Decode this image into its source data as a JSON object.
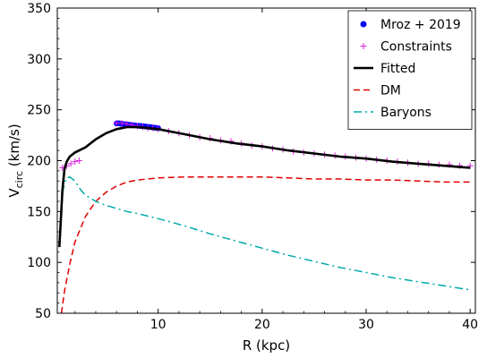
{
  "chart_data": {
    "type": "line",
    "xlabel": "R (kpc)",
    "ylabel": "V",
    "ylabel_sub": "circ",
    "ylabel_unit": " (km/s)",
    "xlim": [
      0.3,
      40.5
    ],
    "ylim": [
      50,
      350
    ],
    "xticks": [
      10,
      20,
      30,
      40
    ],
    "yticks": [
      50,
      100,
      150,
      200,
      250,
      300,
      350
    ],
    "grid": false,
    "legend_position": "top-right",
    "series": [
      {
        "name": "Mroz + 2019",
        "kind": "points",
        "color": "#0000ff",
        "x": [
          6.0,
          6.2,
          6.4,
          6.6,
          6.8,
          7.0,
          7.2,
          7.4,
          7.6,
          7.8,
          8.0,
          8.2,
          8.4,
          8.6,
          8.8,
          9.0,
          9.2,
          9.4,
          9.6,
          9.8,
          10.0
        ],
        "y": [
          236.5,
          236.8,
          236.2,
          236.0,
          235.8,
          235.5,
          235.3,
          235.0,
          234.8,
          234.6,
          234.4,
          234.2,
          234.0,
          233.8,
          233.6,
          233.3,
          233.1,
          232.8,
          232.5,
          232.2,
          231.9
        ]
      },
      {
        "name": "Constraints",
        "kind": "markers",
        "color": "#dd22dd",
        "x": [
          0.8,
          1.2,
          1.6,
          2.0,
          2.4,
          6.0,
          6.5,
          7.0,
          7.5,
          8.0,
          8.5,
          9.0,
          9.5,
          10.0,
          11,
          12,
          13,
          14,
          15,
          16,
          17,
          18,
          19,
          20,
          21,
          22,
          23,
          24,
          25,
          26,
          27,
          28,
          29,
          30,
          31,
          32,
          33,
          34,
          35,
          36,
          37,
          38,
          39,
          40
        ],
        "y": [
          193,
          195,
          197,
          199,
          200,
          237,
          237,
          236,
          235,
          234,
          233,
          232,
          232,
          231,
          229,
          227,
          225,
          223,
          222,
          220,
          219,
          217,
          215,
          214,
          212,
          211,
          209,
          208,
          207,
          206,
          205,
          204,
          203,
          202,
          201,
          200,
          199,
          198,
          197,
          197,
          196,
          196,
          195,
          195
        ]
      },
      {
        "name": "Fitted",
        "kind": "line",
        "color": "#000000",
        "x": [
          0.5,
          0.8,
          1.0,
          1.2,
          1.5,
          2.0,
          3.0,
          4.0,
          5.0,
          6.0,
          7.0,
          8.0,
          9.0,
          10.0,
          12.5,
          15.0,
          17.5,
          20.0,
          22.5,
          25.0,
          27.5,
          30.0,
          32.5,
          35.0,
          37.5,
          40.0
        ],
        "y": [
          115,
          172,
          192,
          199,
          204,
          208,
          213,
          221,
          227,
          231,
          233,
          233,
          232,
          231,
          226,
          221,
          217,
          214,
          210,
          207,
          204,
          202,
          199,
          197,
          195,
          193
        ]
      },
      {
        "name": "DM",
        "kind": "dashed",
        "color": "#e00000",
        "x": [
          0.7,
          1.0,
          1.5,
          2.0,
          3.0,
          4.0,
          5.0,
          6.0,
          7.0,
          8.0,
          9.0,
          10.0,
          12.5,
          15.0,
          17.5,
          20.0,
          22.5,
          25.0,
          27.5,
          30.0,
          32.5,
          35.0,
          37.5,
          40.0
        ],
        "y": [
          50,
          72,
          98,
          120,
          145,
          160,
          169,
          175,
          179,
          181,
          182,
          183,
          184,
          184,
          184,
          184,
          183,
          182,
          182,
          181,
          181,
          180,
          179,
          179
        ]
      },
      {
        "name": "Baryons",
        "kind": "dashdot",
        "color": "#00aaaa",
        "x": [
          0.5,
          0.8,
          1.0,
          1.2,
          1.5,
          2.0,
          2.5,
          3.0,
          4.0,
          5.0,
          6.0,
          7.0,
          8.0,
          10.0,
          12.5,
          15.0,
          17.5,
          20.0,
          22.5,
          25.0,
          27.5,
          30.0,
          32.5,
          35.0,
          37.5,
          40.0
        ],
        "y": [
          118,
          168,
          178,
          183,
          184,
          180,
          172,
          166,
          160,
          156,
          153,
          150,
          148,
          143,
          136,
          128,
          121,
          114,
          107,
          101,
          95,
          90,
          85,
          81,
          77,
          73
        ]
      }
    ]
  }
}
